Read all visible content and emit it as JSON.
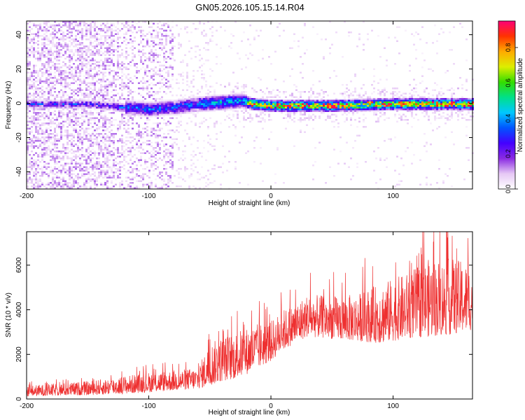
{
  "title": "GN05.2026.105.15.14.R04",
  "chart_data": [
    {
      "type": "heatmap",
      "xlabel": "Height of straight line (km)",
      "ylabel": "Frequency (Hz)",
      "xlim": [
        -200,
        165
      ],
      "ylim": [
        -50,
        48
      ],
      "xticks": [
        -200,
        -100,
        0,
        100
      ],
      "yticks": [
        -40,
        -20,
        0,
        20,
        40
      ],
      "colorbar": {
        "label": "Normalized spectral amplitude",
        "range": [
          0,
          0.95
        ],
        "ticks": [
          0.0,
          0.2,
          0.4,
          0.6,
          0.8
        ],
        "colormap": [
          "#ffffff",
          "#e6c8f5",
          "#8a2be2",
          "#4400ff",
          "#0055ff",
          "#00c8ff",
          "#00e08a",
          "#33dd00",
          "#ddee00",
          "#ffaa00",
          "#ff3300",
          "#ff0077"
        ]
      },
      "ridge": {
        "description_points_x": [
          -200,
          -150,
          -120,
          -100,
          -80,
          -60,
          -40,
          -25,
          -15,
          0,
          50,
          100,
          150,
          165
        ],
        "center_freq": [
          0,
          0,
          -2,
          -3,
          -2,
          0,
          1,
          2,
          0,
          -1,
          -1,
          0,
          0,
          0
        ]
      }
    },
    {
      "type": "line",
      "xlabel": "Height of straight line (km)",
      "ylabel": "SNR (10 * v/v)",
      "xlim": [
        -200,
        165
      ],
      "ylim": [
        0,
        7500
      ],
      "xticks": [
        -200,
        -100,
        0,
        100
      ],
      "yticks": [
        0,
        2000,
        4000,
        6000
      ],
      "grid": false,
      "series": [
        {
          "color": "#ee3030",
          "x": [
            -200,
            -175,
            -150,
            -125,
            -100,
            -80,
            -60,
            -50,
            -40,
            -30,
            -20,
            -10,
            0,
            10,
            20,
            30,
            50,
            70,
            90,
            110,
            130,
            150,
            165
          ],
          "y_low": [
            120,
            150,
            170,
            220,
            300,
            380,
            450,
            600,
            800,
            900,
            1100,
            1400,
            1700,
            2200,
            2500,
            2800,
            2700,
            2600,
            2500,
            2700,
            2800,
            2900,
            3100
          ],
          "y_high": [
            600,
            700,
            800,
            1000,
            1200,
            1300,
            1400,
            2500,
            2800,
            3000,
            3200,
            3400,
            3500,
            4000,
            4300,
            4700,
            4600,
            4700,
            5200,
            5600,
            6300,
            6300,
            6000
          ]
        }
      ]
    }
  ]
}
